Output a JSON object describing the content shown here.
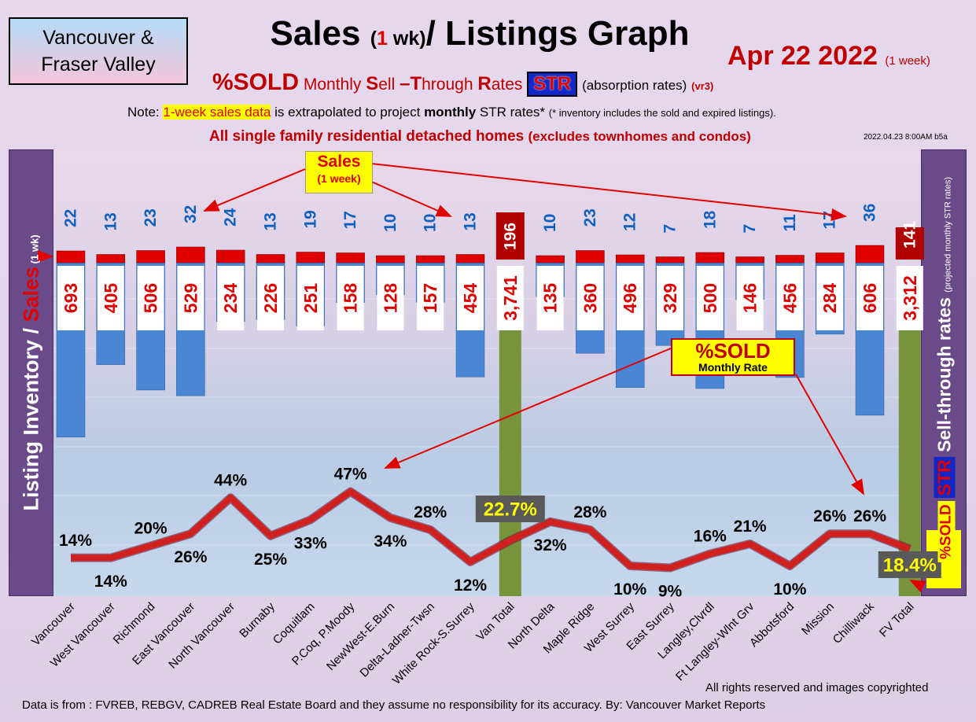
{
  "region_label": [
    "Vancouver &",
    "Fraser Valley"
  ],
  "title": {
    "main_a": "Sales ",
    "paren_open": "(",
    "one": "1",
    "wk": " wk)",
    "main_b": "/ Listings Graph"
  },
  "date": {
    "text": "Apr 22  2022",
    "sub": "(1 week)"
  },
  "subtitle": {
    "sold": "%SOLD",
    "desc_m": "Monthly ",
    "S": "S",
    "ell": "ell ",
    "dash_T": "–T",
    "hrough": "hrough ",
    "R": "R",
    "ates": "ates",
    "str": "STR",
    "absorption": "(absorption rates)",
    "vr": "(vr3)"
  },
  "note": {
    "prefix": "Note: ",
    "highlight": "1-week sales data",
    "mid": " is extrapolated to project ",
    "bold": "monthly",
    "tail": " STR rates*",
    "small": "(* inventory includes the sold and expired listings)."
  },
  "scope": {
    "main": "All single family residential detached homes ",
    "paren": "(excludes townhomes and condos)"
  },
  "version_stamp": "2022.04.23 8:00AM b5a",
  "left_axis": {
    "main": "Listing Inventory ",
    "slash": "/ ",
    "sales": "Sales",
    "wk": " (1 wk)"
  },
  "right_axis": {
    "sold": "%SOLD",
    "str": "STR",
    "main": " Sell-through rates ",
    "note": "(projected monthly STR rates)"
  },
  "sales_callout": {
    "label": "Sales",
    "sub": "(1 week)"
  },
  "sold_callout": {
    "label": "%SOLD",
    "sub": "Monthly Rate"
  },
  "rights": "All rights reserved and  images copyrighted",
  "source": "Data is from : FVREB, REBGV, CADREB Real Estate Board and they assume no responsibility for its accuracy. By: Vancouver Market Reports",
  "colors": {
    "inventory": "#4a86d4",
    "total": "#77933c",
    "sales": "#e00000",
    "sales_total": "#b00000",
    "line": "#d02020",
    "str_label": "#ffff00"
  },
  "chart_data": {
    "type": "bar",
    "categories": [
      "Vancouver",
      "West Vancouver",
      "Richmond",
      "East Vancouver",
      "North Vancouver",
      "Burnaby",
      "Coquitlam",
      "P.Coq, P.Moody",
      "NewWest-E.Burn",
      "Delta-Ladner-Twsn",
      "White Rock-S.Surrey",
      "Van Total",
      "North Delta",
      "Maple Ridge",
      "West Surrey",
      "East Surrey",
      "Langley,Clvrdl",
      "Ft Langley-Wlnt Grv",
      "Abbotsford",
      "Mission",
      "Chilliwack",
      "FV Total"
    ],
    "series": [
      {
        "name": "Sales",
        "labels": [
          "22",
          "13",
          "23",
          "32",
          "24",
          "13",
          "19",
          "17",
          "10",
          "10",
          "13",
          "196",
          "10",
          "23",
          "12",
          "7",
          "18",
          "7",
          "11",
          "17",
          "36",
          "141"
        ],
        "values": [
          22,
          13,
          23,
          32,
          24,
          13,
          19,
          17,
          10,
          10,
          13,
          196,
          10,
          23,
          12,
          7,
          18,
          7,
          11,
          17,
          36,
          141
        ]
      },
      {
        "name": "Listing Inventory",
        "labels": [
          "693",
          "405",
          "506",
          "529",
          "234",
          "226",
          "251",
          "158",
          "128",
          "157",
          "454",
          "3,741",
          "135",
          "360",
          "496",
          "329",
          "500",
          "146",
          "456",
          "284",
          "606",
          "3,312"
        ],
        "values": [
          693,
          405,
          506,
          529,
          234,
          226,
          251,
          158,
          128,
          157,
          454,
          3741,
          135,
          360,
          496,
          329,
          500,
          146,
          456,
          284,
          606,
          3312
        ]
      },
      {
        "name": "%SOLD",
        "labels": [
          "14%",
          "14%",
          "20%",
          "26%",
          "44%",
          "25%",
          "33%",
          "47%",
          "34%",
          "28%",
          "12%",
          "22.7%",
          "32%",
          "28%",
          "10%",
          "9%",
          "16%",
          "21%",
          "10%",
          "26%",
          "26%",
          "18.4%"
        ],
        "values": [
          14,
          14,
          20,
          26,
          44,
          25,
          33,
          47,
          34,
          28,
          12,
          22.7,
          32,
          28,
          10,
          9,
          16,
          21,
          10,
          26,
          26,
          18.4
        ]
      }
    ]
  }
}
